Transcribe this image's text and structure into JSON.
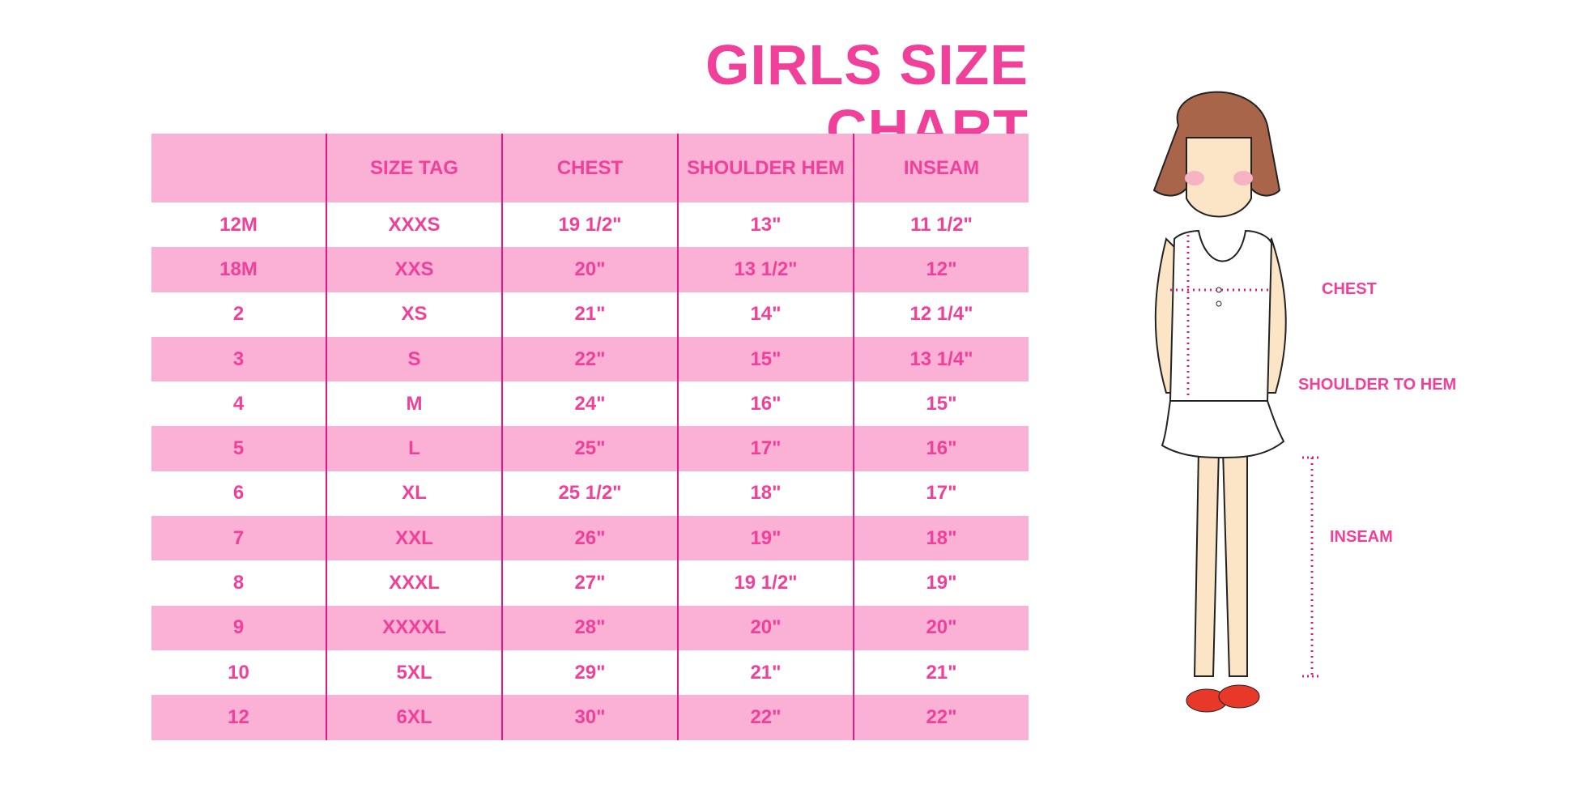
{
  "title": "GIRLS SIZE CHART",
  "table": {
    "headers": [
      "",
      "SIZE TAG",
      "CHEST",
      "SHOULDER HEM",
      "INSEAM"
    ],
    "rows": [
      [
        "12M",
        "XXXS",
        "19 1/2\"",
        "13\"",
        "11 1/2\""
      ],
      [
        "18M",
        "XXS",
        "20\"",
        "13 1/2\"",
        "12\""
      ],
      [
        "2",
        "XS",
        "21\"",
        "14\"",
        "12 1/4\""
      ],
      [
        "3",
        "S",
        "22\"",
        "15\"",
        "13 1/4\""
      ],
      [
        "4",
        "M",
        "24\"",
        "16\"",
        "15\""
      ],
      [
        "5",
        "L",
        "25\"",
        "17\"",
        "16\""
      ],
      [
        "6",
        "XL",
        "25 1/2\"",
        "18\"",
        "17\""
      ],
      [
        "7",
        "XXL",
        "26\"",
        "19\"",
        "18\""
      ],
      [
        "8",
        "XXXL",
        "27\"",
        "19 1/2\"",
        "19\""
      ],
      [
        "9",
        "XXXXL",
        "28\"",
        "20\"",
        "20\""
      ],
      [
        "10",
        "5XL",
        "29\"",
        "21\"",
        "21\""
      ],
      [
        "12",
        "6XL",
        "30\"",
        "22\"",
        "22\""
      ]
    ]
  },
  "figure": {
    "labels": {
      "chest": "CHEST",
      "shoulder_to_hem": "SHOULDER TO HEM",
      "inseam": "INSEAM"
    }
  },
  "colors": {
    "accent": "#f0409a",
    "row_fill": "#fbb0d6",
    "divider": "#e0198a"
  }
}
